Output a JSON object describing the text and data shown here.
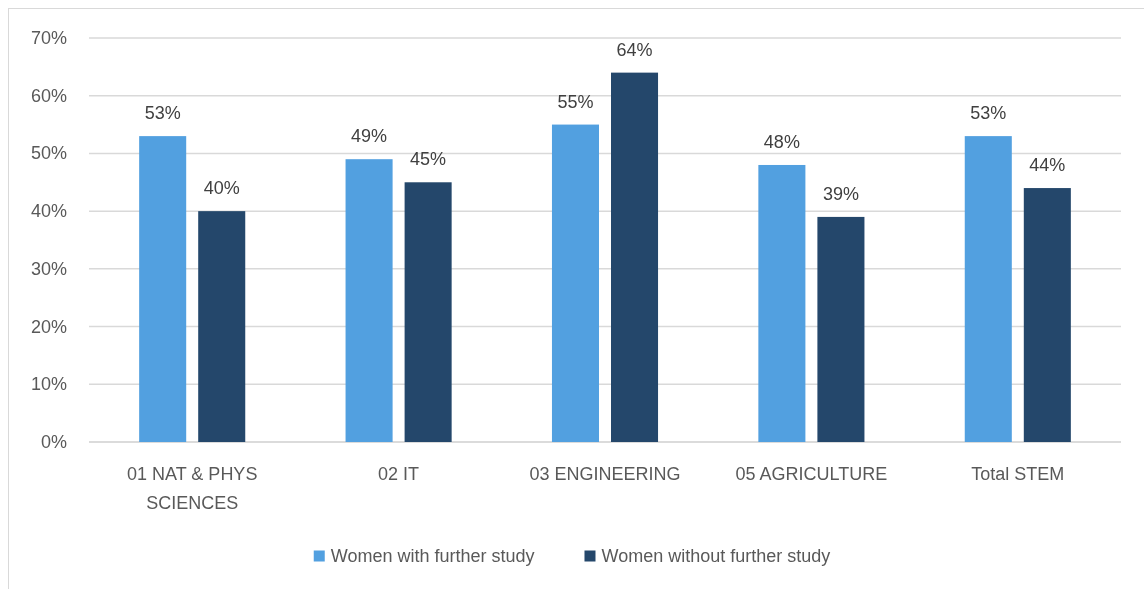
{
  "chart_data": {
    "type": "bar",
    "categories": [
      "01 NAT & PHYS SCIENCES",
      "02 IT",
      "03 ENGINEERING",
      "05 AGRICULTURE",
      "Total STEM"
    ],
    "series": [
      {
        "name": "Women with further study",
        "color": "#52a0e0",
        "values": [
          53,
          49,
          55,
          48,
          53
        ],
        "value_labels": [
          "53%",
          "49%",
          "55%",
          "48%",
          "53%"
        ]
      },
      {
        "name": "Women without further study",
        "color": "#24476b",
        "values": [
          40,
          45,
          64,
          39,
          44
        ],
        "value_labels": [
          "40%",
          "45%",
          "64%",
          "39%",
          "44%"
        ]
      }
    ],
    "ylim": [
      0,
      70
    ],
    "yticks": [
      {
        "value": 0,
        "label": "0%"
      },
      {
        "value": 10,
        "label": "10%"
      },
      {
        "value": 20,
        "label": "20%"
      },
      {
        "value": 30,
        "label": "30%"
      },
      {
        "value": 40,
        "label": "40%"
      },
      {
        "value": 50,
        "label": "50%"
      },
      {
        "value": 60,
        "label": "60%"
      },
      {
        "value": 70,
        "label": "70%"
      }
    ],
    "grid": "y",
    "legend": "bottom"
  }
}
